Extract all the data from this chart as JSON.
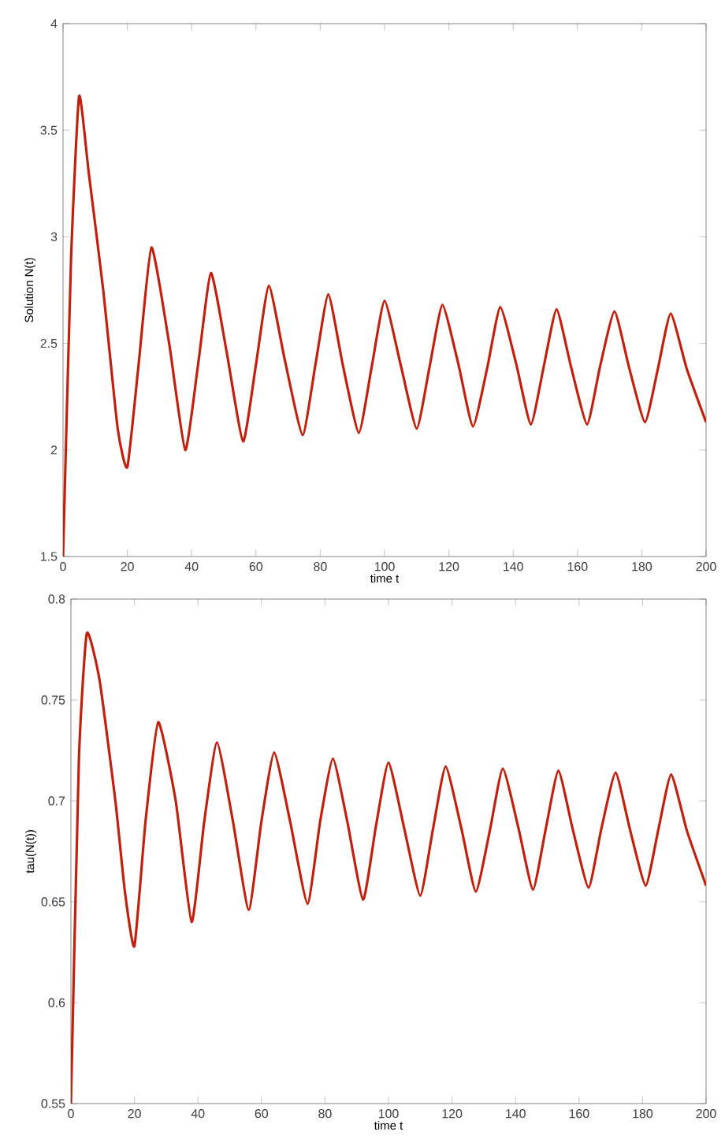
{
  "chart_data": [
    {
      "type": "line",
      "xlabel": "time t",
      "ylabel": "Solution N(t)",
      "xlim": [
        0,
        200
      ],
      "ylim": [
        1.5,
        4
      ],
      "xticks": [
        0,
        20,
        40,
        60,
        80,
        100,
        120,
        140,
        160,
        180,
        200
      ],
      "yticks": [
        1.5,
        2,
        2.5,
        3,
        3.5,
        4
      ],
      "grid": false,
      "series": [
        {
          "color": "#c0200e",
          "x": [
            0,
            2.5,
            5,
            8,
            12.5,
            17,
            20,
            23.5,
            27.5,
            33,
            38,
            42,
            46,
            51,
            56,
            60,
            64,
            69,
            74.5,
            78.5,
            82.5,
            87,
            92,
            96,
            100,
            105,
            110,
            114,
            118,
            123,
            127.5,
            132,
            136,
            141,
            145.5,
            149.5,
            153.5,
            158,
            163,
            167,
            171.5,
            176,
            181,
            185,
            189,
            194,
            200
          ],
          "values": [
            1.5,
            2.9,
            3.66,
            3.3,
            2.75,
            2.1,
            1.92,
            2.4,
            2.95,
            2.5,
            2.0,
            2.4,
            2.83,
            2.45,
            2.04,
            2.4,
            2.77,
            2.42,
            2.07,
            2.4,
            2.73,
            2.4,
            2.08,
            2.39,
            2.7,
            2.4,
            2.1,
            2.39,
            2.68,
            2.4,
            2.11,
            2.39,
            2.67,
            2.4,
            2.12,
            2.39,
            2.66,
            2.39,
            2.12,
            2.39,
            2.65,
            2.39,
            2.13,
            2.38,
            2.64,
            2.38,
            2.13
          ]
        }
      ]
    },
    {
      "type": "line",
      "xlabel": "time t",
      "ylabel": "tau(N(t))",
      "xlim": [
        0,
        200
      ],
      "ylim": [
        0.55,
        0.8
      ],
      "xticks": [
        0,
        20,
        40,
        60,
        80,
        100,
        120,
        140,
        160,
        180,
        200
      ],
      "yticks": [
        0.55,
        0.6,
        0.65,
        0.7,
        0.75,
        0.8
      ],
      "grid": false,
      "series": [
        {
          "color": "#c0200e",
          "x": [
            0,
            2.5,
            5,
            9,
            14,
            17,
            20,
            23.5,
            27.5,
            33,
            38,
            42,
            46,
            51,
            56,
            60,
            64,
            69,
            74.5,
            78.5,
            82.5,
            87,
            92,
            96,
            100,
            105,
            110,
            114,
            118,
            123,
            127.5,
            132,
            136,
            141,
            145.5,
            149.5,
            153.5,
            158,
            163,
            167,
            171.5,
            176,
            181,
            185,
            189,
            194,
            200
          ],
          "values": [
            0.55,
            0.72,
            0.783,
            0.76,
            0.7,
            0.655,
            0.628,
            0.69,
            0.739,
            0.7,
            0.64,
            0.69,
            0.729,
            0.69,
            0.646,
            0.69,
            0.724,
            0.69,
            0.649,
            0.69,
            0.721,
            0.69,
            0.651,
            0.687,
            0.719,
            0.686,
            0.653,
            0.686,
            0.717,
            0.686,
            0.655,
            0.686,
            0.716,
            0.686,
            0.656,
            0.686,
            0.715,
            0.686,
            0.657,
            0.686,
            0.714,
            0.686,
            0.658,
            0.686,
            0.713,
            0.685,
            0.658
          ]
        }
      ]
    }
  ]
}
